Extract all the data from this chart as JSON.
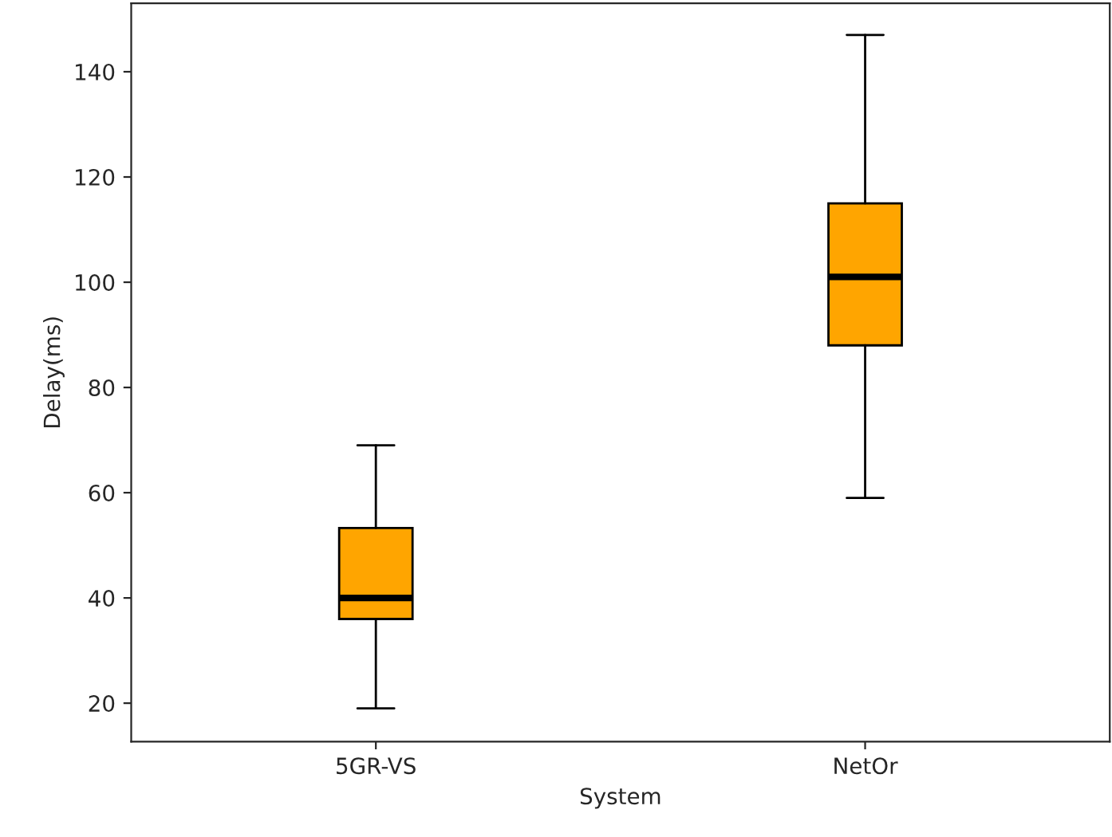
{
  "chart_data": {
    "type": "box",
    "xlabel": "System",
    "ylabel": "Delay(ms)",
    "categories": [
      "5GR-VS",
      "NetOr"
    ],
    "boxes": [
      {
        "low": 19,
        "q1": 36,
        "median": 40,
        "q3": 53.3,
        "high": 69
      },
      {
        "low": 59,
        "q1": 88,
        "median": 101,
        "q3": 115,
        "high": 147
      }
    ],
    "color": "#ffa500",
    "ylim": [
      12.7,
      153
    ],
    "yticks": [
      20,
      40,
      60,
      80,
      100,
      120,
      140
    ],
    "grid": false
  }
}
